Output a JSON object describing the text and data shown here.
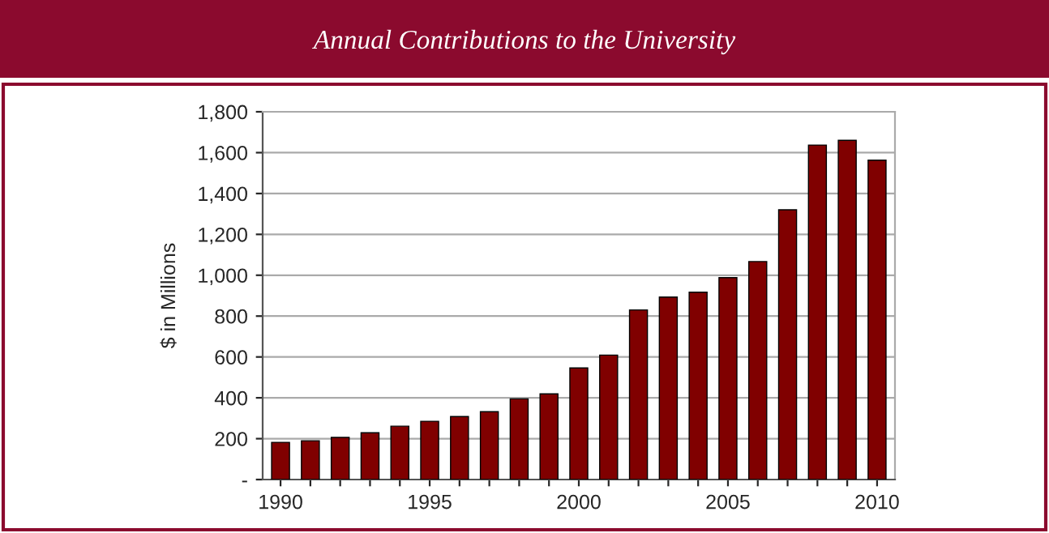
{
  "chart_data": {
    "type": "bar",
    "title": "Annual Contributions to the University",
    "ylabel": "$ in Millions",
    "categories": [
      "1990",
      null,
      null,
      null,
      null,
      "1995",
      null,
      null,
      null,
      null,
      "2000",
      null,
      null,
      null,
      null,
      "2005",
      null,
      null,
      null,
      null,
      "2010"
    ],
    "values": [
      182,
      190,
      206,
      229,
      261,
      285,
      308,
      332,
      395,
      419,
      546,
      609,
      830,
      893,
      917,
      988,
      1067,
      1320,
      1637,
      1660,
      1563
    ],
    "color": "#800000",
    "ylim": [
      0,
      1800
    ],
    "yticks": [
      {
        "value": 0,
        "label": "-"
      },
      {
        "value": 200,
        "label": "200"
      },
      {
        "value": 400,
        "label": "400"
      },
      {
        "value": 600,
        "label": "600"
      },
      {
        "value": 800,
        "label": "800"
      },
      {
        "value": 1000,
        "label": "1,000"
      },
      {
        "value": 1200,
        "label": "1,200"
      },
      {
        "value": 1400,
        "label": "1,400"
      },
      {
        "value": 1600,
        "label": "1,600"
      },
      {
        "value": 1800,
        "label": "1,800"
      }
    ],
    "grid": "y"
  }
}
